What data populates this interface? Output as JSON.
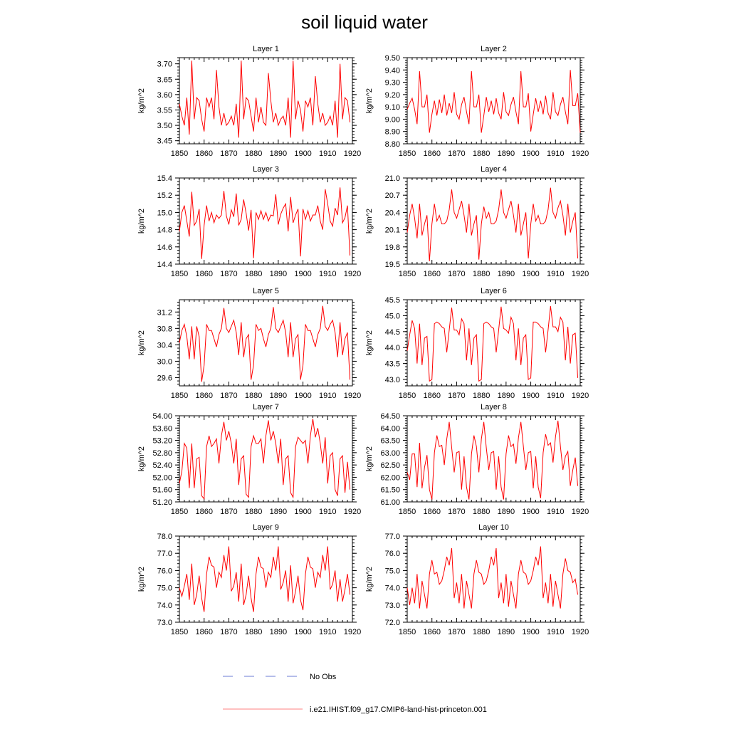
{
  "title": "soil liquid water",
  "legend": {
    "items": [
      {
        "label": "No Obs",
        "color": "#6b7bd6",
        "style": "dashed"
      },
      {
        "label": "i.e21.IHIST.f09_g17.CMIP6-land-hist-princeton.001",
        "color": "#ff8080",
        "style": "solid"
      }
    ]
  },
  "chart_data": [
    {
      "type": "line",
      "title": "Layer 1",
      "ylabel": "kg/m^2",
      "xlim": [
        1850,
        1920
      ],
      "ylim": [
        3.44,
        3.72
      ],
      "xticks": [
        "1850",
        "1860",
        "1870",
        "1880",
        "1890",
        "1900",
        "1910",
        "1920"
      ],
      "yticks": [
        "3.45",
        "3.50",
        "3.55",
        "3.60",
        "3.65",
        "3.70"
      ],
      "series": [
        {
          "color": "#ff0000",
          "x_start": 1850,
          "x_step": 1,
          "values": [
            3.57,
            3.53,
            3.5,
            3.59,
            3.47,
            3.71,
            3.52,
            3.59,
            3.58,
            3.52,
            3.48,
            3.59,
            3.56,
            3.59,
            3.52,
            3.68,
            3.56,
            3.5,
            3.54,
            3.5,
            3.51,
            3.53,
            3.5,
            3.57,
            3.46,
            3.71,
            3.52,
            3.59,
            3.58,
            3.53,
            3.48,
            3.59,
            3.51,
            3.56,
            3.51,
            3.5,
            3.67,
            3.58,
            3.51,
            3.54,
            3.5,
            3.52,
            3.53,
            3.5,
            3.59,
            3.46,
            3.71,
            3.52,
            3.58,
            3.55,
            3.48,
            3.58,
            3.56,
            3.59,
            3.5,
            3.66,
            3.57,
            3.51,
            3.54,
            3.5,
            3.51,
            3.53,
            3.5,
            3.58,
            3.46,
            3.7,
            3.52,
            3.59,
            3.58,
            3.51
          ]
        }
      ]
    },
    {
      "type": "line",
      "title": "Layer 2",
      "ylabel": "kg/m^2",
      "xlim": [
        1850,
        1920
      ],
      "ylim": [
        8.8,
        9.5
      ],
      "xticks": [
        "1850",
        "1860",
        "1870",
        "1880",
        "1890",
        "1900",
        "1910",
        "1920"
      ],
      "yticks": [
        "8.80",
        "8.90",
        "9.00",
        "9.10",
        "9.20",
        "9.30",
        "9.40",
        "9.50"
      ],
      "series": [
        {
          "color": "#ff0000",
          "x_start": 1850,
          "x_step": 1,
          "values": [
            9.08,
            9.13,
            9.17,
            9.08,
            8.96,
            9.39,
            9.1,
            9.1,
            9.2,
            8.89,
            9.04,
            9.15,
            9.03,
            9.16,
            9.05,
            9.2,
            9.03,
            9.13,
            9.05,
            9.22,
            9.04,
            9.0,
            9.12,
            9.18,
            9.06,
            8.96,
            9.39,
            9.1,
            9.1,
            9.2,
            8.89,
            9.03,
            9.18,
            9.06,
            9.15,
            9.04,
            9.17,
            9.05,
            9.0,
            9.22,
            9.06,
            9.03,
            9.12,
            9.18,
            9.06,
            8.96,
            9.39,
            9.1,
            9.1,
            9.21,
            8.9,
            9.04,
            9.17,
            9.06,
            9.15,
            9.04,
            9.19,
            9.05,
            9.0,
            9.22,
            9.06,
            9.03,
            9.12,
            9.18,
            9.06,
            8.96,
            9.4,
            9.11,
            9.11,
            9.21,
            8.89
          ]
        }
      ]
    },
    {
      "type": "line",
      "title": "Layer 3",
      "ylabel": "kg/m^2",
      "xlim": [
        1850,
        1920
      ],
      "ylim": [
        14.4,
        15.4
      ],
      "xticks": [
        "1850",
        "1860",
        "1870",
        "1880",
        "1890",
        "1900",
        "1910",
        "1920"
      ],
      "yticks": [
        "14.4",
        "14.6",
        "14.8",
        "15.0",
        "15.2",
        "15.4"
      ],
      "series": [
        {
          "color": "#ff0000",
          "x_start": 1850,
          "x_step": 1,
          "values": [
            14.78,
            15.0,
            15.08,
            14.9,
            14.72,
            15.24,
            14.85,
            14.9,
            15.04,
            14.46,
            14.85,
            15.08,
            14.9,
            15.0,
            14.88,
            14.97,
            14.93,
            14.97,
            15.25,
            14.96,
            14.86,
            15.03,
            14.95,
            15.22,
            14.85,
            14.92,
            15.15,
            14.99,
            14.79,
            15.03,
            14.47,
            15.0,
            14.92,
            15.02,
            14.92,
            15.0,
            14.9,
            14.97,
            14.96,
            15.21,
            14.86,
            14.98,
            15.05,
            15.1,
            14.78,
            15.18,
            14.88,
            14.97,
            15.04,
            14.49,
            15.04,
            14.92,
            15.02,
            14.9,
            14.97,
            14.97,
            15.08,
            14.9,
            14.8,
            15.27,
            15.1,
            14.9,
            14.84,
            15.05,
            14.97,
            15.29,
            14.88,
            14.94,
            15.08,
            14.5
          ]
        }
      ]
    },
    {
      "type": "line",
      "title": "Layer 4",
      "ylabel": "kg/m^2",
      "xlim": [
        1850,
        1920
      ],
      "ylim": [
        19.5,
        21.0
      ],
      "xticks": [
        "1850",
        "1860",
        "1870",
        "1880",
        "1890",
        "1900",
        "1910",
        "1920"
      ],
      "yticks": [
        "19.5",
        "19.8",
        "20.1",
        "20.4",
        "20.7",
        "21.0"
      ],
      "series": [
        {
          "color": "#ff0000",
          "x_start": 1850,
          "x_step": 1,
          "values": [
            20.05,
            20.35,
            20.55,
            20.3,
            19.95,
            20.55,
            20.0,
            20.2,
            20.35,
            19.55,
            20.2,
            20.55,
            20.25,
            20.35,
            20.2,
            20.2,
            20.25,
            20.45,
            20.8,
            20.4,
            20.3,
            20.45,
            20.6,
            20.35,
            20.05,
            20.55,
            20.0,
            20.2,
            20.35,
            19.58,
            20.2,
            20.5,
            20.3,
            20.4,
            20.2,
            20.2,
            20.25,
            20.45,
            20.8,
            20.4,
            20.3,
            20.45,
            20.6,
            20.35,
            20.05,
            20.55,
            20.0,
            20.2,
            20.4,
            19.6,
            20.2,
            20.55,
            20.25,
            20.35,
            20.2,
            20.2,
            20.25,
            20.45,
            20.83,
            20.4,
            20.3,
            20.48,
            20.6,
            20.35,
            20.0,
            20.55,
            20.05,
            20.25,
            20.4,
            19.6
          ]
        }
      ]
    },
    {
      "type": "line",
      "title": "Layer 5",
      "ylabel": "kg/m^2",
      "xlim": [
        1850,
        1920
      ],
      "ylim": [
        29.4,
        31.5
      ],
      "xticks": [
        "1850",
        "1860",
        "1870",
        "1880",
        "1890",
        "1900",
        "1910",
        "1920"
      ],
      "yticks": [
        "29.6",
        "30.0",
        "30.4",
        "30.8",
        "31.2"
      ],
      "series": [
        {
          "color": "#ff0000",
          "x_start": 1850,
          "x_step": 1,
          "values": [
            30.45,
            30.75,
            30.9,
            30.6,
            30.05,
            30.85,
            30.05,
            30.85,
            30.6,
            29.5,
            29.9,
            30.9,
            30.75,
            30.75,
            30.55,
            30.35,
            30.65,
            30.8,
            31.3,
            30.8,
            30.7,
            30.85,
            31.0,
            30.7,
            30.15,
            30.95,
            30.1,
            30.55,
            30.65,
            29.55,
            29.9,
            30.9,
            30.75,
            30.8,
            30.55,
            30.35,
            30.65,
            30.8,
            31.32,
            30.8,
            30.7,
            30.85,
            31.0,
            30.7,
            30.1,
            30.95,
            30.1,
            30.55,
            30.65,
            29.55,
            29.9,
            30.9,
            30.75,
            30.75,
            30.55,
            30.35,
            30.65,
            30.8,
            31.35,
            30.85,
            30.75,
            30.9,
            31.0,
            30.7,
            30.1,
            30.95,
            30.15,
            30.55,
            30.7,
            29.55
          ]
        }
      ]
    },
    {
      "type": "line",
      "title": "Layer 6",
      "ylabel": "kg/m^2",
      "xlim": [
        1850,
        1920
      ],
      "ylim": [
        42.8,
        45.5
      ],
      "xticks": [
        "1850",
        "1860",
        "1870",
        "1880",
        "1890",
        "1900",
        "1910",
        "1920"
      ],
      "yticks": [
        "43.0",
        "43.5",
        "44.0",
        "44.5",
        "45.0",
        "45.5"
      ],
      "series": [
        {
          "color": "#ff0000",
          "x_start": 1850,
          "x_step": 1,
          "values": [
            43.9,
            44.4,
            44.85,
            44.6,
            43.5,
            44.75,
            43.45,
            44.3,
            44.35,
            42.95,
            43.0,
            44.75,
            44.8,
            44.75,
            44.65,
            44.6,
            43.85,
            44.55,
            45.25,
            44.55,
            44.55,
            44.4,
            44.9,
            44.75,
            43.6,
            44.6,
            43.45,
            44.3,
            44.4,
            42.95,
            43.0,
            44.75,
            44.8,
            44.75,
            44.65,
            44.6,
            43.85,
            44.55,
            45.28,
            44.6,
            44.55,
            44.45,
            44.95,
            44.75,
            43.6,
            44.6,
            43.45,
            44.3,
            44.4,
            43.0,
            43.05,
            44.8,
            44.8,
            44.75,
            44.65,
            44.6,
            43.85,
            44.55,
            45.3,
            44.65,
            44.65,
            44.5,
            44.95,
            44.8,
            43.6,
            44.65,
            43.5,
            44.4,
            44.45,
            43.05
          ]
        }
      ]
    },
    {
      "type": "line",
      "title": "Layer 7",
      "ylabel": "kg/m^2",
      "xlim": [
        1850,
        1920
      ],
      "ylim": [
        51.2,
        54.0
      ],
      "xticks": [
        "1850",
        "1860",
        "1870",
        "1880",
        "1890",
        "1900",
        "1910",
        "1920"
      ],
      "yticks": [
        "51.20",
        "51.60",
        "52.00",
        "52.40",
        "52.80",
        "53.20",
        "53.60",
        "54.00"
      ],
      "series": [
        {
          "color": "#ff0000",
          "x_start": 1850,
          "x_step": 1,
          "values": [
            51.8,
            52.2,
            53.1,
            52.95,
            51.65,
            53.1,
            51.65,
            52.6,
            52.65,
            51.4,
            51.3,
            53.0,
            53.35,
            53.0,
            53.1,
            53.25,
            52.45,
            53.35,
            53.8,
            53.2,
            53.5,
            53.1,
            52.45,
            53.25,
            51.75,
            52.6,
            52.7,
            51.45,
            51.35,
            53.0,
            53.35,
            53.1,
            53.1,
            53.25,
            52.45,
            53.35,
            53.85,
            53.2,
            53.5,
            53.1,
            52.45,
            53.25,
            51.75,
            52.6,
            52.7,
            51.5,
            51.35,
            53.0,
            53.3,
            53.2,
            53.1,
            53.2,
            52.45,
            53.35,
            53.9,
            53.3,
            53.6,
            53.1,
            52.45,
            53.3,
            51.8,
            52.7,
            52.8,
            51.6,
            51.4,
            52.6,
            52.7,
            51.5,
            52.5,
            51.6
          ]
        }
      ]
    },
    {
      "type": "line",
      "title": "Layer 8",
      "ylabel": "kg/m^2",
      "xlim": [
        1850,
        1920
      ],
      "ylim": [
        61.0,
        64.5
      ],
      "xticks": [
        "1850",
        "1860",
        "1870",
        "1880",
        "1890",
        "1900",
        "1910",
        "1920"
      ],
      "yticks": [
        "61.00",
        "61.50",
        "62.00",
        "62.50",
        "63.00",
        "63.50",
        "64.00",
        "64.50"
      ],
      "series": [
        {
          "color": "#ff0000",
          "x_start": 1850,
          "x_step": 1,
          "values": [
            62.2,
            61.9,
            62.95,
            62.95,
            61.6,
            63.4,
            61.55,
            62.4,
            62.9,
            61.5,
            61.1,
            63.0,
            63.7,
            63.25,
            63.3,
            62.5,
            63.55,
            64.25,
            63.2,
            62.2,
            63.0,
            63.05,
            61.5,
            62.85,
            61.6,
            61.1,
            62.95,
            63.7,
            63.25,
            62.2,
            63.55,
            64.25,
            63.2,
            62.3,
            63.0,
            63.05,
            61.5,
            62.85,
            61.6,
            61.1,
            62.95,
            63.7,
            63.25,
            63.35,
            62.55,
            63.6,
            64.25,
            63.25,
            62.3,
            63.0,
            63.05,
            61.55,
            62.85,
            61.6,
            61.15,
            63.0,
            63.75,
            63.3,
            63.4,
            62.6,
            63.65,
            64.3,
            63.25,
            62.3,
            62.85,
            63.05,
            61.65,
            62.3,
            62.8,
            61.65
          ]
        }
      ]
    },
    {
      "type": "line",
      "title": "Layer 9",
      "ylabel": "kg/m^2",
      "xlim": [
        1850,
        1920
      ],
      "ylim": [
        73.0,
        78.0
      ],
      "xticks": [
        "1850",
        "1860",
        "1870",
        "1880",
        "1890",
        "1900",
        "1910",
        "1920"
      ],
      "yticks": [
        "73.0",
        "74.0",
        "75.0",
        "76.0",
        "77.0",
        "78.0"
      ],
      "series": [
        {
          "color": "#ff0000",
          "x_start": 1850,
          "x_step": 1,
          "values": [
            75.0,
            74.5,
            75.1,
            75.8,
            74.3,
            76.4,
            74.0,
            74.6,
            75.7,
            74.4,
            73.6,
            75.8,
            76.8,
            76.3,
            76.2,
            75.0,
            75.9,
            75.6,
            76.9,
            76.0,
            77.4,
            74.8,
            75.1,
            75.9,
            74.2,
            76.4,
            74.0,
            74.6,
            75.7,
            74.4,
            73.6,
            75.8,
            76.8,
            76.2,
            76.1,
            75.0,
            75.9,
            75.6,
            76.8,
            76.0,
            77.4,
            74.9,
            75.3,
            76.0,
            74.2,
            76.3,
            74.1,
            74.8,
            75.7,
            74.3,
            73.7,
            75.8,
            76.8,
            76.2,
            76.1,
            75.0,
            75.9,
            75.6,
            76.9,
            76.0,
            77.4,
            74.9,
            75.2,
            76.0,
            74.2,
            75.5,
            74.2,
            74.9,
            75.8,
            74.6
          ]
        }
      ]
    },
    {
      "type": "line",
      "title": "Layer 10",
      "ylabel": "kg/m^2",
      "xlim": [
        1850,
        1920
      ],
      "ylim": [
        72.0,
        77.0
      ],
      "xticks": [
        "1850",
        "1860",
        "1870",
        "1880",
        "1890",
        "1900",
        "1910",
        "1920"
      ],
      "yticks": [
        "72.0",
        "73.0",
        "74.0",
        "75.0",
        "76.0",
        "77.0"
      ],
      "series": [
        {
          "color": "#ff0000",
          "x_start": 1850,
          "x_step": 1,
          "values": [
            74.0,
            73.0,
            74.0,
            73.1,
            74.8,
            72.8,
            74.4,
            73.6,
            72.8,
            74.8,
            75.6,
            74.8,
            74.9,
            74.2,
            74.4,
            75.0,
            75.8,
            75.3,
            76.3,
            73.4,
            74.3,
            73.1,
            74.8,
            72.8,
            74.4,
            73.6,
            72.8,
            74.8,
            75.6,
            74.9,
            74.8,
            74.2,
            74.4,
            75.0,
            75.8,
            75.3,
            76.3,
            73.4,
            74.3,
            73.1,
            74.8,
            72.9,
            74.4,
            73.6,
            72.8,
            74.8,
            75.6,
            74.9,
            74.8,
            74.2,
            74.4,
            75.0,
            75.8,
            75.3,
            76.4,
            73.4,
            74.3,
            73.1,
            74.8,
            72.9,
            74.4,
            73.6,
            72.8,
            74.8,
            75.7,
            75.0,
            74.9,
            74.3,
            74.5,
            73.6
          ]
        }
      ]
    }
  ]
}
